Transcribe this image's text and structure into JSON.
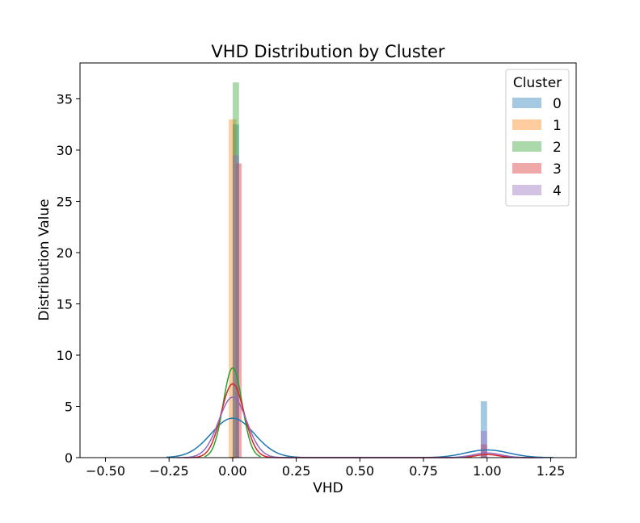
{
  "chart_data": {
    "type": "histogram-kde",
    "title": "VHD Distribution by Cluster",
    "xlabel": "VHD",
    "ylabel": "Distribution Value",
    "xlim": [
      -0.6,
      1.35
    ],
    "ylim": [
      0,
      38.5
    ],
    "x_ticks": [
      -0.5,
      -0.25,
      0.0,
      0.25,
      0.5,
      0.75,
      1.0,
      1.25
    ],
    "x_tick_labels": [
      "−0.50",
      "−0.25",
      "0.00",
      "0.25",
      "0.50",
      "0.75",
      "1.00",
      "1.25"
    ],
    "y_ticks": [
      0,
      5,
      10,
      15,
      20,
      25,
      30,
      35
    ],
    "y_tick_labels": [
      "0",
      "5",
      "10",
      "15",
      "20",
      "25",
      "30",
      "35"
    ],
    "grid": false,
    "legend": {
      "title": "Cluster",
      "placement": "top-right"
    },
    "series": [
      {
        "name": "0",
        "color": "#1f77b4",
        "bars": [
          {
            "x0": 0.0,
            "x1": 0.025,
            "height": 32.5
          },
          {
            "x0": 0.975,
            "x1": 1.0,
            "height": 5.5
          }
        ],
        "kde": {
          "components": [
            {
              "mu": 0.0,
              "sigma": 0.085,
              "peak": 3.85
            },
            {
              "mu": 1.0,
              "sigma": 0.085,
              "peak": 0.75
            }
          ],
          "range": [
            -0.26,
            1.26
          ]
        }
      },
      {
        "name": "1",
        "color": "#ff7f0e",
        "bars": [
          {
            "x0": -0.015,
            "x1": 0.015,
            "height": 33.0
          }
        ],
        "kde": {
          "components": [
            {
              "mu": 0.0,
              "sigma": 0.001,
              "peak": 0.0
            }
          ],
          "range": [
            -0.01,
            0.01
          ]
        }
      },
      {
        "name": "2",
        "color": "#2ca02c",
        "bars": [
          {
            "x0": 0.0,
            "x1": 0.025,
            "height": 36.6
          }
        ],
        "kde": {
          "components": [
            {
              "mu": 0.0,
              "sigma": 0.037,
              "peak": 8.75
            }
          ],
          "range": [
            -0.11,
            0.11
          ]
        }
      },
      {
        "name": "3",
        "color": "#d62728",
        "bars": [
          {
            "x0": 0.012,
            "x1": 0.035,
            "height": 28.7
          },
          {
            "x0": 0.975,
            "x1": 1.0,
            "height": 1.3
          }
        ],
        "kde": {
          "components": [
            {
              "mu": 0.0,
              "sigma": 0.045,
              "peak": 7.2
            },
            {
              "mu": 1.0,
              "sigma": 0.045,
              "peak": 0.3
            }
          ],
          "range": [
            -0.19,
            1.19
          ]
        }
      },
      {
        "name": "4",
        "color": "#9467bd",
        "bars": [
          {
            "x0": 0.0,
            "x1": 0.025,
            "height": 29.5
          },
          {
            "x0": 0.975,
            "x1": 1.0,
            "height": 2.6
          }
        ],
        "kde": {
          "components": [
            {
              "mu": 0.0,
              "sigma": 0.055,
              "peak": 5.9
            },
            {
              "mu": 1.0,
              "sigma": 0.055,
              "peak": 0.45
            }
          ],
          "range": [
            -0.22,
            1.22
          ]
        }
      }
    ]
  }
}
